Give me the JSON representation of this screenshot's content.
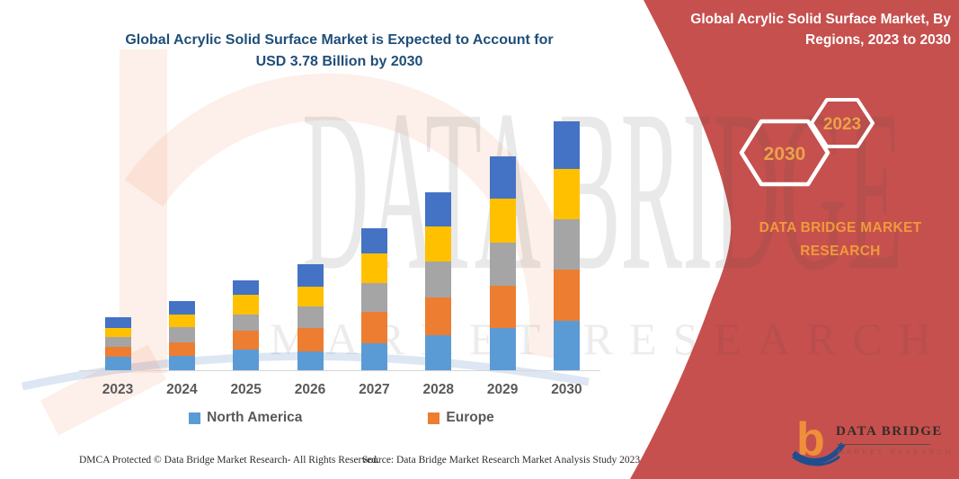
{
  "header": {
    "title_lines": [
      "Global Acrylic Solid Surface Market is Expected to Account for",
      "USD 3.78 Billion by 2030"
    ]
  },
  "chart_data": {
    "type": "bar",
    "stacked": true,
    "title": "Global Acrylic Solid Surface Market is Expected to Account for USD 3.78 Billion by 2030",
    "categories": [
      "2023",
      "2024",
      "2025",
      "2026",
      "2027",
      "2028",
      "2029",
      "2030"
    ],
    "unit": "USD billion (estimated from bar heights; 2030 total = 3.78)",
    "totals": [
      0.8,
      1.05,
      1.37,
      1.61,
      2.16,
      2.7,
      3.25,
      3.78
    ],
    "series": [
      {
        "name": "North America",
        "color": "#5B9BD5",
        "values": [
          0.2,
          0.22,
          0.31,
          0.29,
          0.41,
          0.53,
          0.64,
          0.75
        ]
      },
      {
        "name": "Europe",
        "color": "#ED7D31",
        "values": [
          0.16,
          0.2,
          0.29,
          0.35,
          0.48,
          0.57,
          0.64,
          0.78
        ]
      },
      {
        "name": "unlabeled-gray",
        "color": "#A5A5A5",
        "values": [
          0.14,
          0.23,
          0.25,
          0.33,
          0.44,
          0.55,
          0.66,
          0.76
        ]
      },
      {
        "name": "unlabeled-yellow",
        "color": "#FFC000",
        "values": [
          0.14,
          0.2,
          0.29,
          0.3,
          0.45,
          0.53,
          0.66,
          0.76
        ]
      },
      {
        "name": "unlabeled-darkblue",
        "color": "#4472C4",
        "values": [
          0.16,
          0.2,
          0.23,
          0.34,
          0.38,
          0.52,
          0.65,
          0.73
        ]
      }
    ],
    "legend": [
      {
        "label": "North America",
        "color": "#5B9BD5"
      },
      {
        "label": "Europe",
        "color": "#ED7D31"
      }
    ],
    "legend_position": "bottom",
    "axes": {
      "y_axis_visible": false,
      "gridlines": false,
      "x_ticks_visible": true
    }
  },
  "footer": {
    "dmca": "DMCA Protected © Data Bridge Market Research-  All Rights Reserved.",
    "source": "Source: Data Bridge Market Research  Market Analysis Study 2023"
  },
  "side_panel": {
    "title_lines": [
      "Global Acrylic Solid Surface Market, By",
      "Regions, 2023 to 2030"
    ],
    "hexagon_back_label": "2030",
    "hexagon_front_label": "2023",
    "brand_lines": [
      "DATA BRIDGE MARKET",
      "RESEARCH"
    ],
    "background_color": "#c6504e",
    "accent_color": "#f09a3c"
  },
  "logo": {
    "name_text": "DATA BRIDGE",
    "sub_text": "MARKET RESEARCH"
  },
  "watermark": {
    "line1": "DATA BRIDGE",
    "line2": "MARKET RESEARCH"
  }
}
